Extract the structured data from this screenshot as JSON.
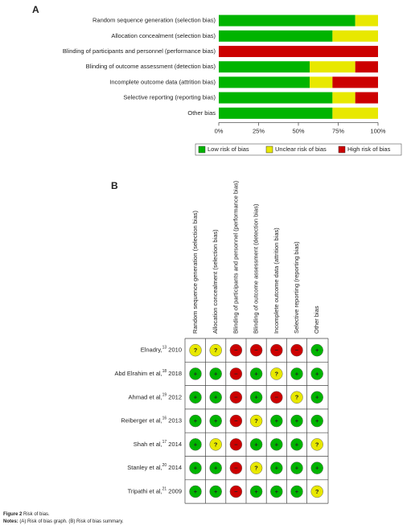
{
  "chart_data": {
    "type": "stacked_barh",
    "panel": "A",
    "categories": [
      "Random sequence generation (selection bias)",
      "Allocation concealment (selection bias)",
      "Blinding of participants and personnel (performance bias)",
      "Blinding of outcome assessment (detection bias)",
      "Incomplete outcome data (attrition bias)",
      "Selective reporting (reporting bias)",
      "Other bias"
    ],
    "series": [
      {
        "name": "Low risk of bias",
        "color": "#00b400",
        "values": [
          85.7,
          71.4,
          0,
          57.1,
          57.1,
          71.4,
          71.4
        ]
      },
      {
        "name": "Unclear risk of bias",
        "color": "#e8e800",
        "values": [
          14.3,
          28.6,
          0,
          28.6,
          14.3,
          14.3,
          28.6
        ]
      },
      {
        "name": "High risk of bias",
        "color": "#cc0000",
        "values": [
          0,
          0,
          100,
          14.3,
          28.6,
          14.3,
          0
        ]
      }
    ],
    "xlim": [
      0,
      100
    ],
    "xticks": [
      {
        "value": 0,
        "label": "0%"
      },
      {
        "value": 25,
        "label": "25%"
      },
      {
        "value": 50,
        "label": "50%"
      },
      {
        "value": 75,
        "label": "75%"
      },
      {
        "value": 100,
        "label": "100%"
      }
    ],
    "legend": "bottom"
  },
  "summary": {
    "panel": "B",
    "symbols": [
      {
        "symbol": "+",
        "color": "#00b400"
      },
      {
        "symbol": "?",
        "color": "#e8e800"
      },
      {
        "symbol": "−",
        "color": "#cc0000"
      }
    ],
    "rows": [
      {
        "study": "Elnadry,",
        "ref": "13",
        "year": "2010",
        "cells": [
          "?",
          "?",
          "−",
          "−",
          "−",
          "−",
          "+"
        ]
      },
      {
        "study": "Abd Elrahim et al,",
        "ref": "18",
        "year": "2018",
        "cells": [
          "+",
          "+",
          "−",
          "+",
          "?",
          "+",
          "+"
        ]
      },
      {
        "study": "Ahmad et al,",
        "ref": "19",
        "year": "2012",
        "cells": [
          "+",
          "+",
          "−",
          "+",
          "−",
          "?",
          "+"
        ]
      },
      {
        "study": "Reiberger et al,",
        "ref": "16",
        "year": "2013",
        "cells": [
          "+",
          "+",
          "−",
          "?",
          "+",
          "+",
          "+"
        ]
      },
      {
        "study": "Shah et al,",
        "ref": "17",
        "year": "2014",
        "cells": [
          "+",
          "?",
          "−",
          "+",
          "+",
          "+",
          "?"
        ]
      },
      {
        "study": "Stanley et al,",
        "ref": "20",
        "year": "2014",
        "cells": [
          "+",
          "+",
          "−",
          "?",
          "+",
          "+",
          "+"
        ]
      },
      {
        "study": "Tripathi et al,",
        "ref": "21",
        "year": "2009",
        "cells": [
          "+",
          "+",
          "−",
          "+",
          "+",
          "+",
          "?"
        ]
      }
    ]
  },
  "caption": {
    "label": "Figure 2",
    "text": "Risk of bias.",
    "notes_label": "Notes:",
    "notes_text": "(A) Risk of bias graph. (B) Risk of bias summary."
  }
}
